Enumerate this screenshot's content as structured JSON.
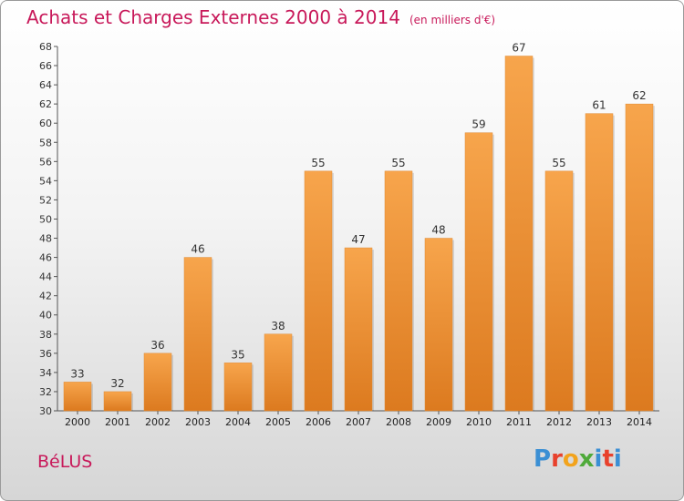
{
  "header": {
    "title": "Achats et Charges Externes 2000 à 2014",
    "unit": "(en milliers d'€)"
  },
  "footer": {
    "commune": "BéLUS",
    "logo": "Proxiti"
  },
  "colors": {
    "title": "#c8195a",
    "bar_light": "#f7a54c",
    "bar_dark": "#dc7a1f",
    "logo_letters": [
      "#3b8fd4",
      "#e8412c",
      "#f2a31c",
      "#4faa3a",
      "#3b8fd4",
      "#e8412c",
      "#3b8fd4"
    ]
  },
  "chart_data": {
    "type": "bar",
    "title": "Achats et Charges Externes 2000 à 2014",
    "subtitle": "(en milliers d'€)",
    "categories": [
      "2000",
      "2001",
      "2002",
      "2003",
      "2004",
      "2005",
      "2006",
      "2007",
      "2008",
      "2009",
      "2010",
      "2011",
      "2012",
      "2013",
      "2014"
    ],
    "values": [
      33,
      32,
      36,
      46,
      35,
      38,
      55,
      47,
      55,
      48,
      59,
      67,
      55,
      61,
      62
    ],
    "ylim": [
      30,
      68
    ],
    "yticks": [
      30,
      32,
      34,
      36,
      38,
      40,
      42,
      44,
      46,
      48,
      50,
      52,
      54,
      56,
      58,
      60,
      62,
      64,
      66,
      68
    ],
    "grid": false,
    "data_labels": true
  }
}
